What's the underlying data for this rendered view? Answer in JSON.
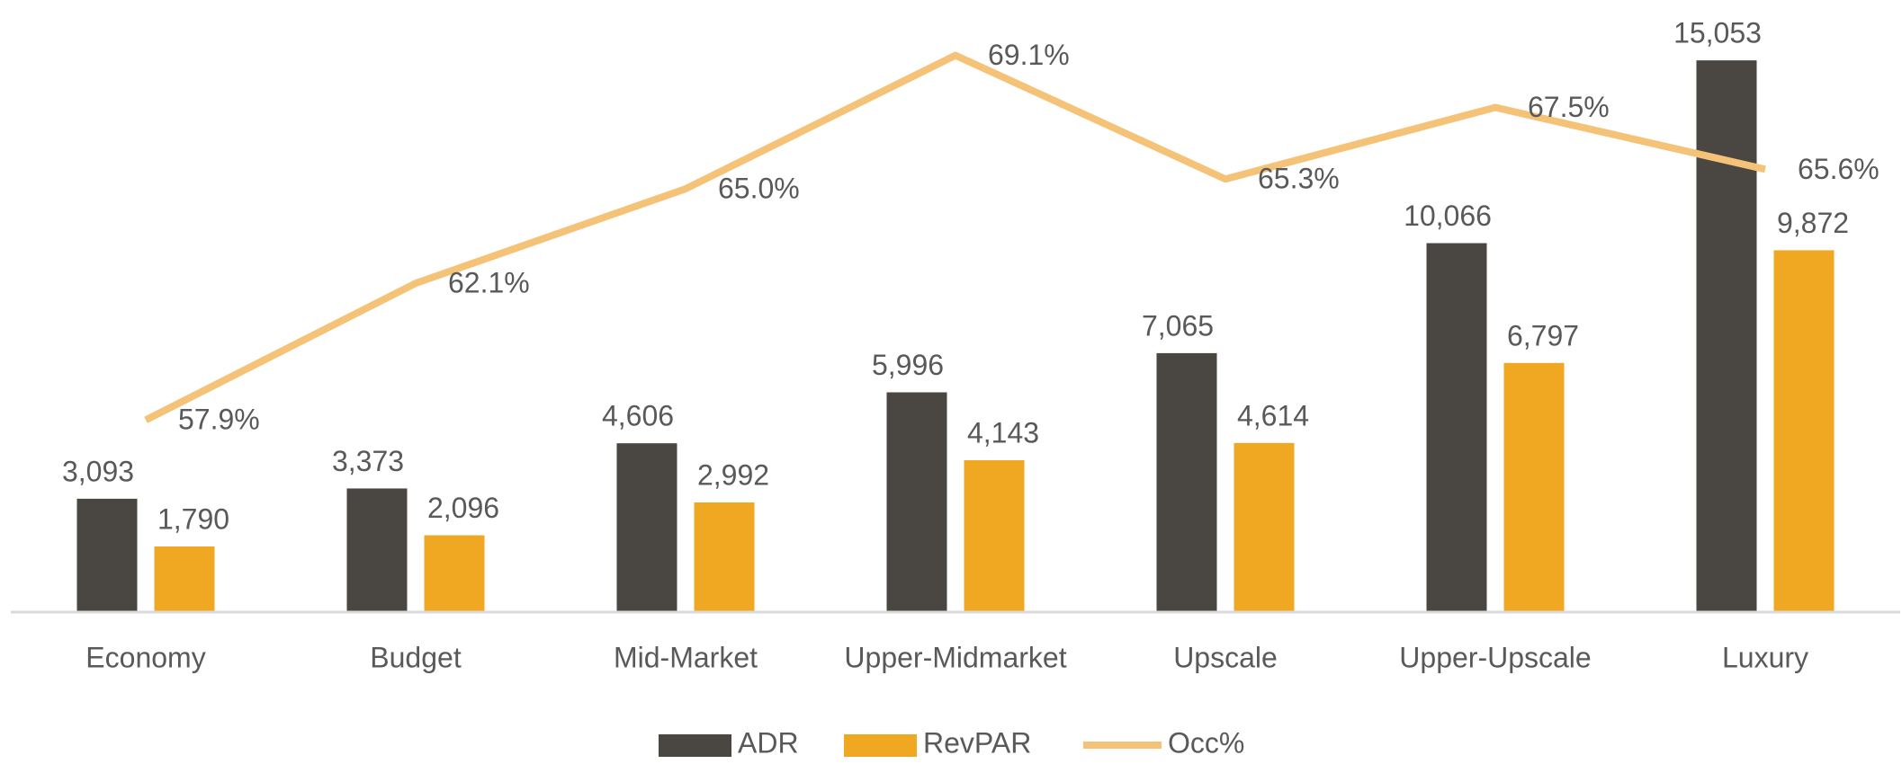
{
  "chart_data": {
    "type": "bar",
    "categories": [
      "Economy",
      "Budget",
      "Mid-Market",
      "Upper-Midmarket",
      "Upscale",
      "Upper-Upscale",
      "Luxury"
    ],
    "series": [
      {
        "name": "ADR",
        "type": "bar",
        "color": "#4a4641",
        "values": [
          3093,
          3373,
          4606,
          5996,
          7065,
          10066,
          15053
        ],
        "value_labels": [
          "3,093",
          "3,373",
          "4,606",
          "5,996",
          "7,065",
          "10,066",
          "15,053"
        ]
      },
      {
        "name": "RevPAR",
        "type": "bar",
        "color": "#f0a823",
        "values": [
          1790,
          2096,
          2992,
          4143,
          4614,
          6797,
          9872
        ],
        "value_labels": [
          "1,790",
          "2,096",
          "2,992",
          "4,143",
          "4,614",
          "6,797",
          "9,872"
        ]
      },
      {
        "name": "Occ%",
        "type": "line",
        "axis": "y2",
        "color": "#f5c378",
        "values": [
          57.9,
          62.1,
          65.0,
          69.1,
          65.3,
          67.5,
          65.6
        ],
        "value_labels": [
          "57.9%",
          "62.1%",
          "65.0%",
          "69.1%",
          "65.3%",
          "67.5%",
          "65.6%"
        ]
      }
    ],
    "ylim": [
      0,
      16700
    ],
    "y2lim": [
      52,
      70.8
    ],
    "legend": "bottom"
  }
}
